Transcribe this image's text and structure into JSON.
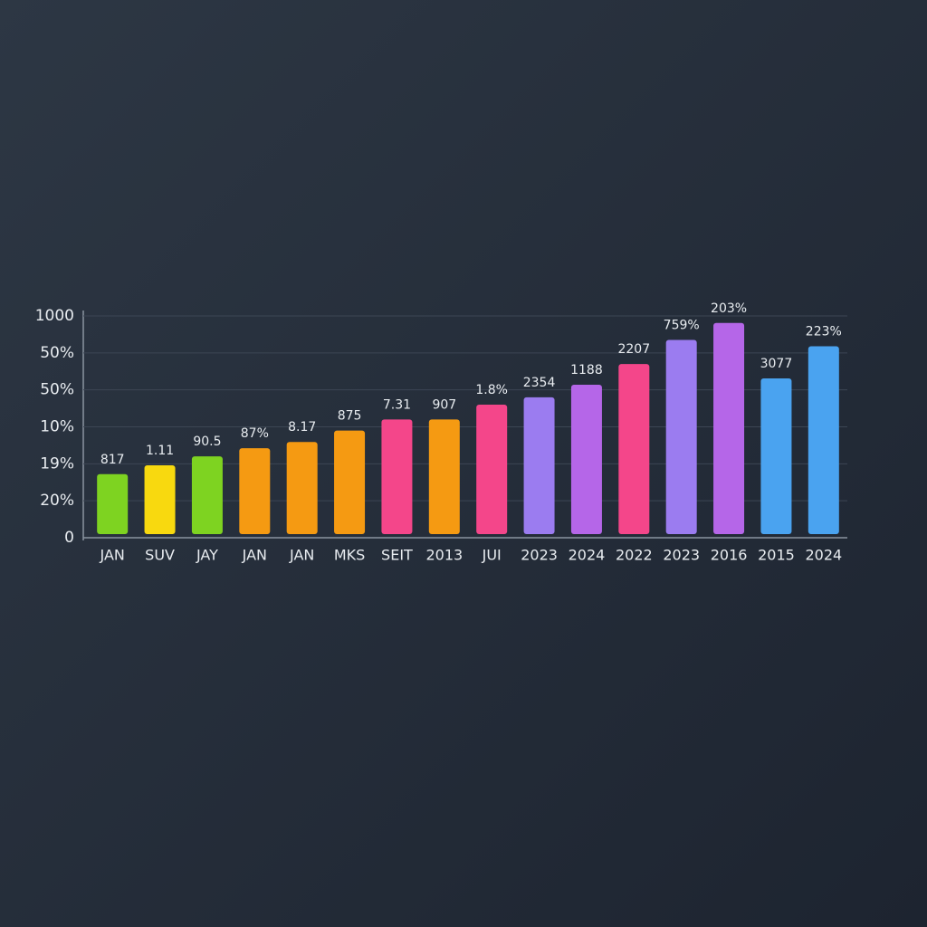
{
  "chart_data": {
    "type": "bar",
    "categories": [
      "JAN",
      "SUV",
      "JAY",
      "JAN",
      "JAN",
      "MKS",
      "SEIT",
      "2013",
      "JUI",
      "2023",
      "2024",
      "2022",
      "2023",
      "2016",
      "2015",
      "2024"
    ],
    "values": [
      1.72,
      1.96,
      2.2,
      2.42,
      2.59,
      2.9,
      3.2,
      3.2,
      3.6,
      3.8,
      4.14,
      4.7,
      5.35,
      5.81,
      4.31,
      5.18
    ],
    "annotations": [
      "817",
      "1.11",
      "90.5",
      "87%",
      "8.17",
      "875",
      "7.31",
      "907",
      "1.8%",
      "2354",
      "1188",
      "2207",
      "759%",
      "203%",
      "3077",
      "223%"
    ],
    "colors": [
      "#7ed321",
      "#f8d90f",
      "#7ed321",
      "#f59a12",
      "#f59a12",
      "#f59a12",
      "#f4468a",
      "#f59a12",
      "#f4468a",
      "#9b7cf0",
      "#b566e8",
      "#f4468a",
      "#9b7cf0",
      "#b566e8",
      "#4aa3f0",
      "#4aa3f0"
    ],
    "ylim": [
      0,
      6
    ],
    "yticks": [
      0,
      {
        "value": 1,
        "label": "20%"
      },
      {
        "value": 2,
        "label": "19%"
      },
      {
        "value": 3,
        "label": "10%"
      },
      {
        "value": 4,
        "label": "50%"
      },
      {
        "value": 5,
        "label": "50%"
      },
      {
        "value": 6,
        "label": "1000"
      }
    ],
    "grid": true
  }
}
